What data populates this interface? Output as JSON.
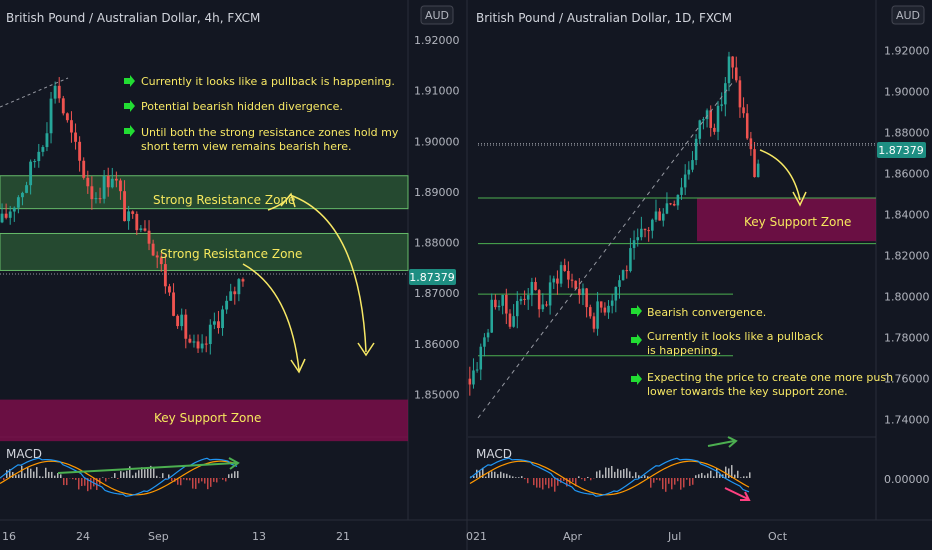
{
  "left_panel": {
    "title": "British Pound / Australian Dollar, 4h, FXCM",
    "currency": "AUD",
    "price_ticks": [
      "1.92000",
      "1.91000",
      "1.90000",
      "1.89000",
      "1.88000",
      "1.87000",
      "1.86000",
      "1.85000"
    ],
    "current_price": "1.87379",
    "x_ticks": [
      "16",
      "24",
      "Sep",
      "13",
      "21"
    ],
    "zones": {
      "resistance_1": "Strong Resistance Zone",
      "resistance_2": "Strong Resistance Zone",
      "support": "Key Support Zone"
    },
    "notes": [
      [
        "Currently it looks like a pullback is happening."
      ],
      [
        "Potential bearish hidden divergence."
      ],
      [
        "Until both the strong resistance zones hold my",
        "short term view remains bearish here."
      ]
    ],
    "macd_label": "MACD"
  },
  "right_panel": {
    "title": "British Pound / Australian Dollar, 1D, FXCM",
    "currency": "AUD",
    "price_ticks": [
      "1.92000",
      "1.90000",
      "1.88000",
      "1.86000",
      "1.84000",
      "1.82000",
      "1.80000",
      "1.78000",
      "1.76000",
      "1.74000"
    ],
    "current_price": "1.87379",
    "x_ticks": [
      "021",
      "Apr",
      "Jul",
      "Oct"
    ],
    "zones": {
      "support": "Key Support Zone"
    },
    "notes": [
      [
        "Bearish convergence."
      ],
      [
        "Currently it looks like a pullback",
        "is happening."
      ],
      [
        "Expecting the price to create one more push",
        "lower towards the key support zone."
      ]
    ],
    "macd_label": "MACD",
    "macd_zero": "0.00000"
  },
  "colors": {
    "background": "#131722",
    "bull_candle": "#26a69a",
    "bear_candle": "#ef5350",
    "resistance_zone": "#4caf50",
    "support_zone": "#880e4f",
    "annotation": "#f7e865",
    "note_arrow": "#22dd33",
    "price_tag": "#1e8e82"
  },
  "chart_data": [
    {
      "type": "candlestick",
      "title": "British Pound / Australian Dollar, 4h, FXCM",
      "ylim": [
        1.843,
        1.92
      ],
      "close_path": [
        [
          0,
          1.884
        ],
        [
          5,
          1.892
        ],
        [
          9,
          1.902
        ],
        [
          11,
          1.912
        ],
        [
          13,
          1.905
        ],
        [
          16,
          1.896
        ],
        [
          19,
          1.889
        ],
        [
          23,
          1.894
        ],
        [
          26,
          1.884
        ],
        [
          29,
          1.885
        ],
        [
          32,
          1.878
        ],
        [
          35,
          1.869
        ],
        [
          38,
          1.862
        ],
        [
          41,
          1.857
        ],
        [
          44,
          1.864
        ],
        [
          47,
          1.868
        ],
        [
          50,
          1.874
        ]
      ],
      "zones": [
        {
          "label": "Strong Resistance Zone",
          "from": 1.8867,
          "to": 1.8932
        },
        {
          "label": "Strong Resistance Zone",
          "from": 1.8745,
          "to": 1.8818
        },
        {
          "label": "Key Support Zone",
          "from": 1.8408,
          "to": 1.849
        }
      ],
      "current_price": 1.87379
    },
    {
      "type": "candlestick",
      "title": "British Pound / Australian Dollar, 1D, FXCM",
      "ylim": [
        1.735,
        1.925
      ],
      "close_path": [
        [
          0,
          1.76
        ],
        [
          3,
          1.775
        ],
        [
          6,
          1.8
        ],
        [
          10,
          1.79
        ],
        [
          14,
          1.805
        ],
        [
          18,
          1.795
        ],
        [
          22,
          1.815
        ],
        [
          26,
          1.805
        ],
        [
          30,
          1.79
        ],
        [
          34,
          1.8
        ],
        [
          38,
          1.815
        ],
        [
          42,
          1.83
        ],
        [
          46,
          1.842
        ],
        [
          50,
          1.85
        ],
        [
          53,
          1.863
        ],
        [
          57,
          1.89
        ],
        [
          60,
          1.885
        ],
        [
          62,
          1.905
        ],
        [
          63,
          1.915
        ],
        [
          65,
          1.9
        ],
        [
          67,
          1.883
        ],
        [
          69,
          1.86
        ],
        [
          70,
          1.866
        ]
      ],
      "zones": [
        {
          "label": "Key Support Zone",
          "from": 1.827,
          "to": 1.848
        }
      ],
      "fib_levels": [
        1.8745,
        1.848,
        1.8258,
        1.8012,
        1.7712
      ],
      "current_price": 1.87379
    }
  ]
}
